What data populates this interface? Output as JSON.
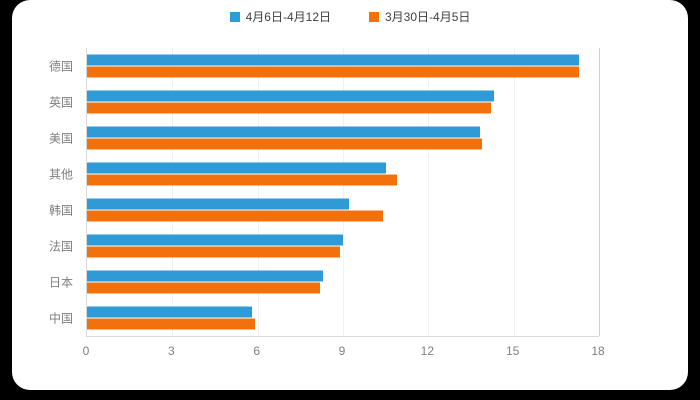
{
  "chart_data": {
    "type": "bar",
    "orientation": "horizontal",
    "title": "",
    "xlabel": "",
    "ylabel": "",
    "xlim": [
      0,
      18
    ],
    "x_ticks": [
      0,
      3,
      6,
      9,
      12,
      15,
      18
    ],
    "grid": true,
    "legend_position": "top-center",
    "categories": [
      "德国",
      "英国",
      "美国",
      "其他",
      "韩国",
      "法国",
      "日本",
      "中国"
    ],
    "series": [
      {
        "name": "4月6日-4月12日",
        "color": "#2e9bd6",
        "values": [
          17.3,
          14.3,
          13.8,
          10.5,
          9.2,
          9.0,
          8.3,
          5.8
        ]
      },
      {
        "name": "3月30日-4月5日",
        "color": "#f3710d",
        "values": [
          17.3,
          14.2,
          13.9,
          10.9,
          10.4,
          8.9,
          8.2,
          5.9
        ]
      }
    ]
  },
  "legend": {
    "series1_label": "4月6日-4月12日",
    "series2_label": "3月30日-4月5日"
  },
  "colors": {
    "series1": "#2e9bd6",
    "series2": "#f3710d",
    "axis_text": "#808080",
    "panel_bg": "#ffffff",
    "page_bg": "#000000"
  }
}
